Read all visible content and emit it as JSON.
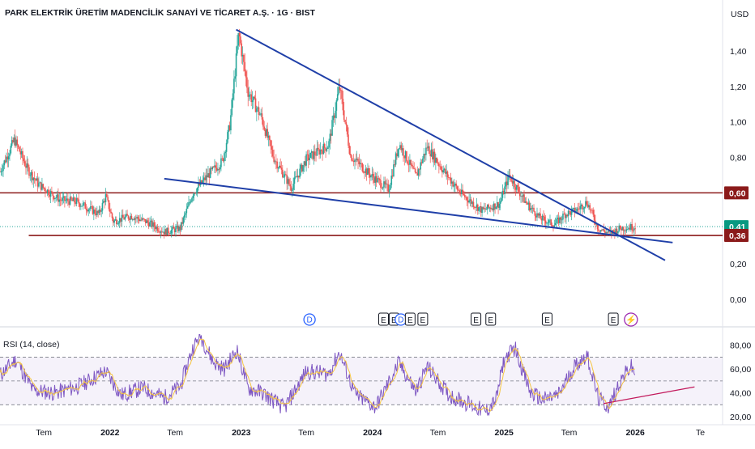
{
  "header": {
    "title": "PARK ELEKTRİK ÜRETİM MADENCİLİK SANAYİ VE TİCARET A.Ş. · 1G · BIST",
    "currency": "USD"
  },
  "colors": {
    "up": "#26a69a",
    "down": "#ef5350",
    "trend_line": "#1f3fa8",
    "level_line": "#8b1a1a",
    "price_badge": "#089981",
    "level_badge": "#8b1a1a",
    "rsi": "#7e57c2",
    "rsi_ma": "#f5c542",
    "event_blue": "#2962ff",
    "event_purple": "#9c27b0"
  },
  "chart_data": [
    {
      "type": "candlestick",
      "ylim": [
        0,
        1.55
      ],
      "yticks": [
        "0,00",
        "0,20",
        "0,40",
        "0,60",
        "0,80",
        "1,00",
        "1,20",
        "1,40"
      ],
      "ytick_values": [
        0,
        0.2,
        0.4,
        0.6,
        0.8,
        1.0,
        1.2,
        1.4
      ],
      "x_labels": [
        "Tem",
        "2022",
        "Tem",
        "2023",
        "Tem",
        "2024",
        "Tem",
        "2025",
        "Tem",
        "2026",
        "Te"
      ],
      "x_label_dates": [
        "2021-07-01",
        "2022-01-01",
        "2022-07-01",
        "2023-01-01",
        "2023-07-01",
        "2024-01-01",
        "2024-07-01",
        "2025-01-01",
        "2025-07-01",
        "2026-01-01",
        "2026-07-01"
      ],
      "x_range": [
        "2021-03-01",
        "2026-09-01"
      ],
      "price_path": [
        [
          "2021-03-01",
          0.72
        ],
        [
          "2021-04-10",
          0.9
        ],
        [
          "2021-05-15",
          0.74
        ],
        [
          "2021-06-15",
          0.65
        ],
        [
          "2021-08-15",
          0.56
        ],
        [
          "2021-10-01",
          0.55
        ],
        [
          "2021-12-01",
          0.48
        ],
        [
          "2021-12-20",
          0.58
        ],
        [
          "2022-01-10",
          0.44
        ],
        [
          "2022-03-01",
          0.47
        ],
        [
          "2022-04-20",
          0.43
        ],
        [
          "2022-06-01",
          0.38
        ],
        [
          "2022-07-15",
          0.4
        ],
        [
          "2022-08-20",
          0.6
        ],
        [
          "2022-10-01",
          0.7
        ],
        [
          "2022-11-10",
          0.78
        ],
        [
          "2022-12-01",
          0.99
        ],
        [
          "2022-12-25",
          1.5
        ],
        [
          "2023-01-20",
          1.17
        ],
        [
          "2023-02-25",
          1.03
        ],
        [
          "2023-04-01",
          0.8
        ],
        [
          "2023-05-20",
          0.63
        ],
        [
          "2023-07-01",
          0.79
        ],
        [
          "2023-09-01",
          0.87
        ],
        [
          "2023-10-01",
          1.2
        ],
        [
          "2023-11-01",
          0.81
        ],
        [
          "2024-01-01",
          0.69
        ],
        [
          "2024-02-15",
          0.62
        ],
        [
          "2024-03-15",
          0.88
        ],
        [
          "2024-05-01",
          0.69
        ],
        [
          "2024-06-01",
          0.86
        ],
        [
          "2024-07-15",
          0.73
        ],
        [
          "2024-09-01",
          0.6
        ],
        [
          "2024-11-01",
          0.5
        ],
        [
          "2024-12-20",
          0.54
        ],
        [
          "2025-01-15",
          0.7
        ],
        [
          "2025-03-01",
          0.55
        ],
        [
          "2025-04-10",
          0.46
        ],
        [
          "2025-05-20",
          0.42
        ],
        [
          "2025-06-20",
          0.48
        ],
        [
          "2025-07-20",
          0.5
        ],
        [
          "2025-08-20",
          0.55
        ],
        [
          "2025-09-20",
          0.4
        ],
        [
          "2025-10-20",
          0.37
        ],
        [
          "2025-11-20",
          0.4
        ],
        [
          "2026-01-01",
          0.41
        ]
      ],
      "last_price": 0.41,
      "trend_lines": [
        {
          "from": [
            "2022-12-18",
            1.52
          ],
          "to": [
            "2026-03-25",
            0.22
          ]
        },
        {
          "from": [
            "2022-06-01",
            0.68
          ],
          "to": [
            "2026-04-15",
            0.32
          ]
        }
      ],
      "horizontal_levels": [
        {
          "value": 0.6,
          "from": "2021-03-01"
        },
        {
          "value": 0.36,
          "from": "2021-05-20"
        }
      ],
      "price_badges": [
        {
          "value": 0.6,
          "label": "0,60",
          "color": "#8b1a1a"
        },
        {
          "value": 0.41,
          "label": "0,41",
          "color": "#089981"
        },
        {
          "value": 0.36,
          "label": "0,36",
          "color": "#8b1a1a"
        }
      ],
      "events": [
        {
          "date": "2023-07-10",
          "label": "D",
          "kind": "dividend"
        },
        {
          "date": "2024-02-01",
          "label": "E",
          "kind": "earnings"
        },
        {
          "date": "2024-03-01",
          "label": "E",
          "kind": "earnings"
        },
        {
          "date": "2024-03-20",
          "label": "D",
          "kind": "dividend"
        },
        {
          "date": "2024-04-15",
          "label": "E",
          "kind": "earnings"
        },
        {
          "date": "2024-05-20",
          "label": "E",
          "kind": "earnings"
        },
        {
          "date": "2024-10-15",
          "label": "E",
          "kind": "earnings"
        },
        {
          "date": "2024-11-25",
          "label": "E",
          "kind": "earnings"
        },
        {
          "date": "2025-05-01",
          "label": "E",
          "kind": "earnings"
        },
        {
          "date": "2025-11-01",
          "label": "E",
          "kind": "earnings"
        },
        {
          "date": "2025-12-20",
          "label": "⚡",
          "kind": "flash"
        }
      ]
    },
    {
      "type": "line",
      "title": "RSI (14, close)",
      "ylim": [
        18,
        90
      ],
      "yticks": [
        "20,00",
        "40,00",
        "60,00",
        "80,00"
      ],
      "ytick_values": [
        20,
        40,
        60,
        80
      ],
      "bands": {
        "upper": 70,
        "middle": 50,
        "lower": 30
      },
      "rsi_path": [
        [
          "2021-03-01",
          55
        ],
        [
          "2021-04-15",
          68
        ],
        [
          "2021-06-01",
          42
        ],
        [
          "2021-08-01",
          40
        ],
        [
          "2021-10-01",
          45
        ],
        [
          "2021-12-20",
          58
        ],
        [
          "2022-02-01",
          38
        ],
        [
          "2022-04-01",
          44
        ],
        [
          "2022-06-01",
          36
        ],
        [
          "2022-07-15",
          45
        ],
        [
          "2022-08-20",
          78
        ],
        [
          "2022-09-10",
          88
        ],
        [
          "2022-10-15",
          66
        ],
        [
          "2022-11-15",
          60
        ],
        [
          "2022-12-20",
          76
        ],
        [
          "2023-01-20",
          44
        ],
        [
          "2023-03-01",
          40
        ],
        [
          "2023-05-01",
          27
        ],
        [
          "2023-07-01",
          58
        ],
        [
          "2023-09-01",
          56
        ],
        [
          "2023-10-01",
          74
        ],
        [
          "2023-11-15",
          38
        ],
        [
          "2024-01-10",
          28
        ],
        [
          "2024-03-15",
          65
        ],
        [
          "2024-05-01",
          41
        ],
        [
          "2024-06-01",
          62
        ],
        [
          "2024-08-01",
          38
        ],
        [
          "2024-10-01",
          30
        ],
        [
          "2024-11-10",
          24
        ],
        [
          "2024-12-10",
          34
        ],
        [
          "2025-01-01",
          68
        ],
        [
          "2025-02-01",
          78
        ],
        [
          "2025-03-15",
          40
        ],
        [
          "2025-04-20",
          34
        ],
        [
          "2025-06-01",
          38
        ],
        [
          "2025-07-15",
          62
        ],
        [
          "2025-08-20",
          72
        ],
        [
          "2025-09-20",
          35
        ],
        [
          "2025-10-20",
          28
        ],
        [
          "2025-11-20",
          50
        ],
        [
          "2025-12-20",
          62
        ],
        [
          "2026-01-01",
          56
        ]
      ],
      "trend_line": {
        "from": [
          "2025-10-05",
          31
        ],
        "to": [
          "2026-06-15",
          45
        ]
      }
    }
  ]
}
